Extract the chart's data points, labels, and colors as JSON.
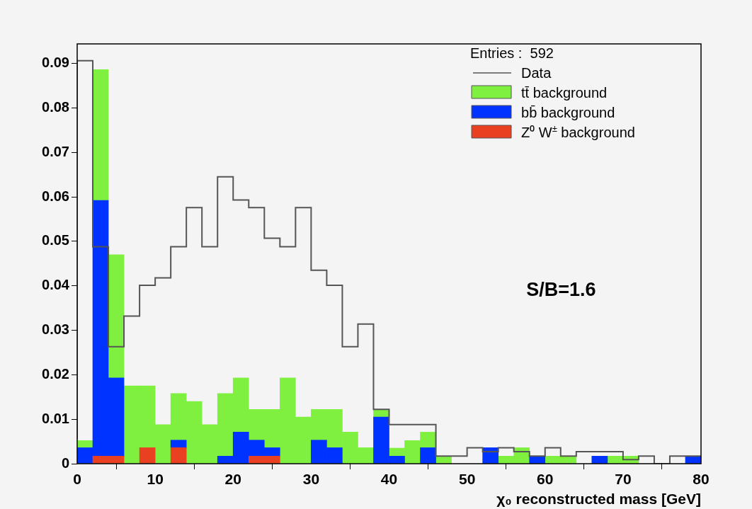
{
  "chart_data": {
    "type": "bar",
    "stacked": true,
    "xlabel": "χ₀ reconstructed mass [GeV]",
    "legend_title": "Entries :  592",
    "legend": "top right",
    "grid": false,
    "annotations": [
      "S/B=1.6"
    ],
    "x": [
      1,
      3,
      5,
      7,
      9,
      11,
      13,
      15,
      17,
      19,
      21,
      23,
      25,
      27,
      29,
      31,
      33,
      35,
      37,
      39,
      41,
      43,
      45,
      47,
      49,
      51,
      53,
      55,
      57,
      59,
      61,
      63,
      65,
      67,
      69,
      71,
      73,
      75,
      77,
      79
    ],
    "xlim": [
      0,
      80
    ],
    "xticks": [
      0,
      10,
      20,
      30,
      40,
      50,
      60,
      70,
      80
    ],
    "ylim": [
      0,
      0.0944
    ],
    "yticks": [
      0,
      0.01,
      0.02,
      0.03,
      0.04,
      0.05,
      0.06,
      0.07,
      0.08,
      0.09
    ],
    "series": [
      {
        "name": "Z⁰ W$^{±}$ background",
        "color": "#e84020",
        "values": [
          null,
          0.0017,
          0.0017,
          null,
          0.0036,
          null,
          0.0036,
          null,
          null,
          null,
          null,
          0.0017,
          0.0017,
          null,
          null,
          null,
          null,
          null,
          null,
          null,
          null,
          null,
          null,
          null,
          null,
          null,
          null,
          null,
          null,
          null,
          null,
          null,
          null,
          null,
          null,
          null,
          null,
          null,
          null,
          null
        ]
      },
      {
        "name": "bb̄ background",
        "color": "#0033ff",
        "values": [
          0.0036,
          0.0575,
          0.0176,
          null,
          null,
          null,
          0.0017,
          null,
          null,
          0.0017,
          0.0071,
          0.0036,
          0.0019,
          null,
          null,
          0.0053,
          0.0036,
          null,
          null,
          0.0105,
          0.0017,
          null,
          0.0036,
          null,
          null,
          null,
          0.0036,
          null,
          null,
          0.0017,
          null,
          null,
          null,
          0.0017,
          null,
          null,
          null,
          null,
          null,
          0.0017
        ]
      },
      {
        "name": "tt̄ background",
        "color": "#80f040",
        "values": [
          0.0016,
          0.0294,
          0.0277,
          0.0175,
          0.0139,
          0.0088,
          0.0105,
          0.014,
          0.0088,
          0.0141,
          0.0122,
          0.0069,
          0.0086,
          0.0193,
          0.0105,
          0.0069,
          0.0086,
          0.0071,
          0.0036,
          0.0016,
          0.0018,
          0.0052,
          0.0035,
          0.0017,
          null,
          null,
          null,
          0.0017,
          0.0036,
          null,
          0.0017,
          0.0017,
          null,
          null,
          0.0017,
          0.0017,
          null,
          null,
          null,
          null
        ]
      },
      {
        "name": "Data",
        "type": "step",
        "color": "#555555",
        "x": [
          0,
          2,
          4,
          6,
          8,
          10,
          12,
          14,
          16,
          18,
          20,
          22,
          24,
          26,
          28,
          30,
          32,
          34,
          36,
          38,
          40,
          42,
          44,
          46,
          48,
          50,
          52,
          54,
          56,
          58,
          60,
          62,
          64,
          66,
          68,
          70,
          72,
          74,
          76,
          78,
          80
        ],
        "values": [
          0.0055,
          0.0906,
          0.0488,
          0.0263,
          0.0332,
          0.0401,
          0.0418,
          0.0488,
          0.0576,
          0.0488,
          0.0645,
          0.0593,
          0.0576,
          0.0507,
          0.0488,
          0.0576,
          0.0435,
          0.0401,
          0.0263,
          0.0314,
          0.0122,
          0.0088,
          0.0088,
          0.0088,
          0.0017,
          0.0017,
          0.0036,
          0.0027,
          0.0036,
          0.0027,
          0.0017,
          0.0036,
          0.0017,
          0.0027,
          0.0027,
          0.0027,
          0.0009,
          0.0017,
          0,
          0.0017,
          0.0017
        ]
      }
    ]
  }
}
